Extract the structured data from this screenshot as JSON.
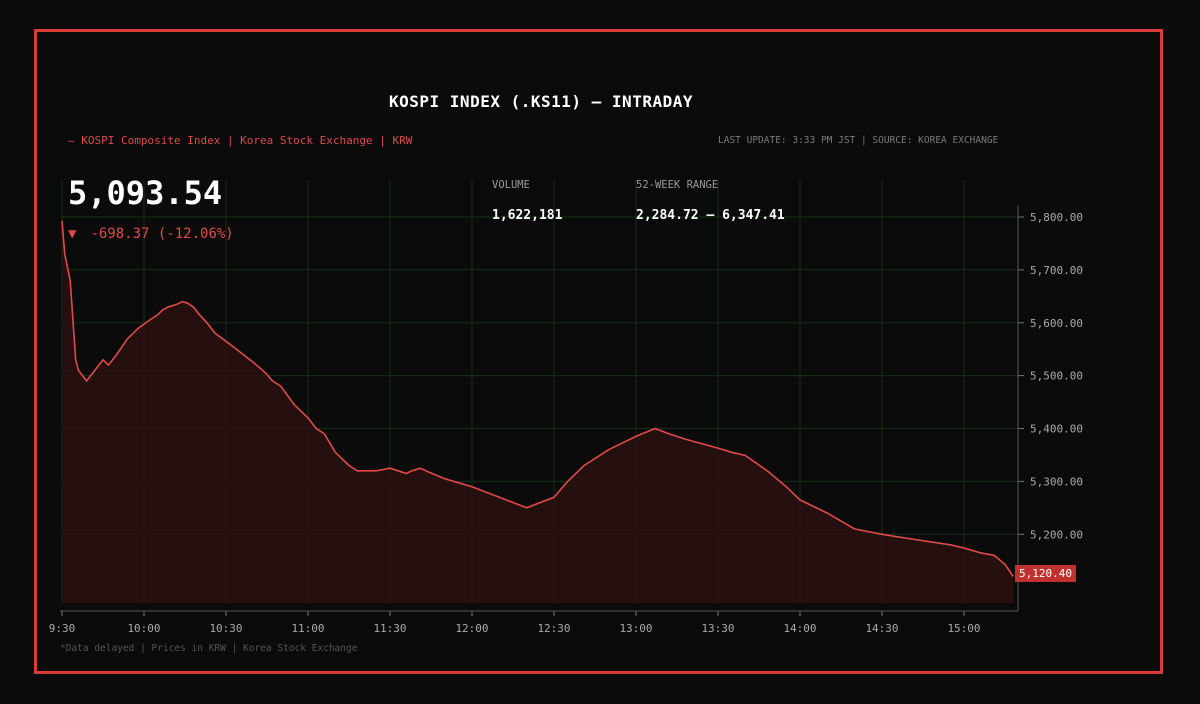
{
  "header": {
    "title": "KOSPI INDEX (.KS11) — INTRADAY",
    "subtitle": "—  KOSPI Composite Index | Korea Stock Exchange | KRW",
    "meta": "LAST UPDATE: 3:33 PM JST  |  SOURCE: KOREA EXCHANGE"
  },
  "quote": {
    "price": "5,093.54",
    "arrow": "▼",
    "change": "-698.37  (-12.06%)"
  },
  "stats": {
    "volume_label": "VOLUME",
    "volume_value": "1,622,181",
    "range_label": "52-WEEK RANGE",
    "range_value": "2,284.72 — 6,347.41"
  },
  "footer_note": "*Data delayed | Prices in KRW | Korea Stock Exchange",
  "last_value_label": "5,120.40",
  "colors": {
    "accent": "#d93b3b",
    "line": "#e04a4a",
    "background": "#0b0b0b",
    "grid": "#163016"
  },
  "chart_data": {
    "type": "area",
    "xlabel": "",
    "ylabel": "",
    "grid": true,
    "x_ticks": [
      "9:30",
      "10:00",
      "10:30",
      "11:00",
      "11:30",
      "12:00",
      "12:30",
      "13:00",
      "13:30",
      "14:00",
      "14:30",
      "15:00"
    ],
    "y_ticks": [
      "5,200.00",
      "5,300.00",
      "5,400.00",
      "5,500.00",
      "5,600.00",
      "5,700.00",
      "5,800.00"
    ],
    "ylim": [
      5070,
      5870
    ],
    "series": [
      {
        "x": [
          "09:30",
          "09:31",
          "09:33",
          "09:35",
          "09:36",
          "09:39",
          "09:42",
          "09:45",
          "09:47",
          "09:50",
          "09:54",
          "09:58",
          "10:02",
          "10:05",
          "10:07",
          "10:09",
          "10:12",
          "10:14",
          "10:16",
          "10:18",
          "10:20",
          "10:23",
          "10:26",
          "10:30",
          "10:35",
          "10:40",
          "10:43",
          "10:45",
          "10:47",
          "10:50",
          "10:55",
          "11:00",
          "11:03",
          "11:06",
          "11:10",
          "11:15",
          "11:18",
          "11:21",
          "11:25",
          "11:30",
          "11:33",
          "11:36",
          "11:38",
          "11:41",
          "11:44",
          "11:50",
          "12:00",
          "12:10",
          "12:20",
          "12:30",
          "12:35",
          "12:41",
          "12:50",
          "13:00",
          "13:07",
          "13:12",
          "13:18",
          "13:25",
          "13:30",
          "13:35",
          "13:40",
          "13:48",
          "13:55",
          "14:00",
          "14:10",
          "14:20",
          "14:30",
          "14:42",
          "14:55",
          "15:00",
          "15:06",
          "15:11",
          "15:15",
          "15:18"
        ],
        "values": [
          5793,
          5730,
          5680,
          5530,
          5510,
          5490,
          5510,
          5530,
          5520,
          5540,
          5570,
          5590,
          5605,
          5615,
          5625,
          5630,
          5635,
          5640,
          5637,
          5630,
          5617,
          5600,
          5580,
          5565,
          5545,
          5525,
          5512,
          5502,
          5490,
          5480,
          5445,
          5420,
          5400,
          5390,
          5355,
          5330,
          5320,
          5320,
          5320,
          5325,
          5320,
          5315,
          5320,
          5325,
          5318,
          5305,
          5290,
          5270,
          5250,
          5270,
          5300,
          5330,
          5360,
          5385,
          5400,
          5390,
          5380,
          5370,
          5363,
          5355,
          5349,
          5320,
          5290,
          5265,
          5240,
          5210,
          5200,
          5190,
          5180,
          5174,
          5165,
          5160,
          5143,
          5120.4
        ]
      }
    ]
  }
}
